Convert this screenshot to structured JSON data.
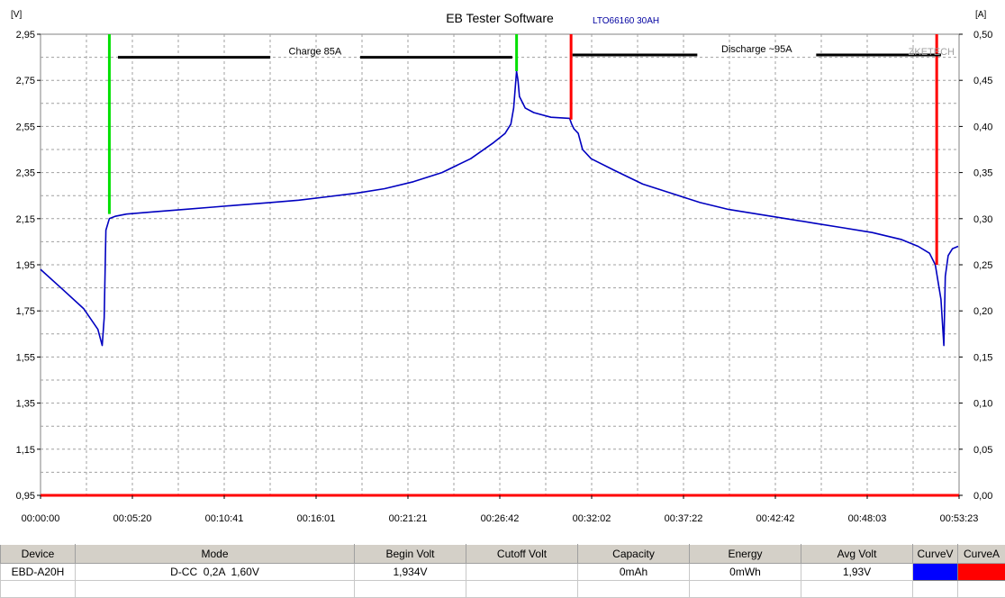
{
  "chart_data": {
    "type": "line",
    "title": "EB Tester Software",
    "subtitle": "LTO66160 30AH",
    "watermark": "ZKETECH",
    "ylabel_left": "[V]",
    "ylabel_right": "[A]",
    "ylim_left": [
      0.95,
      2.95
    ],
    "ylim_right": [
      0.0,
      0.5
    ],
    "yticks_left": [
      "2,95",
      "2,75",
      "2,55",
      "2,35",
      "2,15",
      "1,95",
      "1,75",
      "1,55",
      "1,35",
      "1,15",
      "0,95"
    ],
    "yticks_right": [
      "0,50",
      "0,45",
      "0,40",
      "0,35",
      "0,30",
      "0,25",
      "0,20",
      "0,15",
      "0,10",
      "0,05",
      "0,00"
    ],
    "xlim_seconds": [
      0,
      3203
    ],
    "xticks": [
      "00:00:00",
      "00:05:20",
      "00:10:41",
      "00:16:01",
      "00:21:21",
      "00:26:42",
      "00:32:02",
      "00:37:22",
      "00:42:42",
      "00:48:03",
      "00:53:23"
    ],
    "grid": true,
    "annotations": [
      {
        "text": "Charge 85A",
        "x_start": 270,
        "x_end": 1645,
        "y": 2.85
      },
      {
        "text": "Discharge ~95A",
        "x_start": 1855,
        "x_end": 3140,
        "y": 2.86
      }
    ],
    "markers": [
      {
        "color": "#00e000",
        "x": 240,
        "y_top": 2.95,
        "y_bottom": 2.17
      },
      {
        "color": "#00e000",
        "x": 1660,
        "y_top": 2.95,
        "y_bottom": 2.79
      },
      {
        "color": "#ff0000",
        "x": 1850,
        "y_top": 2.95,
        "y_bottom": 2.58
      },
      {
        "color": "#ff0000",
        "x": 3125,
        "y_top": 2.95,
        "y_bottom": 1.95
      }
    ],
    "series": [
      {
        "axis": "left",
        "color": "#0000c0",
        "points": [
          [
            0,
            1.93
          ],
          [
            80,
            1.84
          ],
          [
            150,
            1.76
          ],
          [
            200,
            1.67
          ],
          [
            215,
            1.6
          ],
          [
            222,
            1.72
          ],
          [
            228,
            2.1
          ],
          [
            240,
            2.15
          ],
          [
            260,
            2.16
          ],
          [
            300,
            2.17
          ],
          [
            400,
            2.18
          ],
          [
            500,
            2.19
          ],
          [
            600,
            2.2
          ],
          [
            700,
            2.21
          ],
          [
            800,
            2.22
          ],
          [
            900,
            2.23
          ],
          [
            1000,
            2.245
          ],
          [
            1100,
            2.26
          ],
          [
            1200,
            2.28
          ],
          [
            1300,
            2.31
          ],
          [
            1400,
            2.35
          ],
          [
            1500,
            2.41
          ],
          [
            1580,
            2.48
          ],
          [
            1620,
            2.52
          ],
          [
            1640,
            2.56
          ],
          [
            1650,
            2.63
          ],
          [
            1660,
            2.79
          ],
          [
            1665,
            2.75
          ],
          [
            1670,
            2.68
          ],
          [
            1690,
            2.63
          ],
          [
            1720,
            2.61
          ],
          [
            1780,
            2.59
          ],
          [
            1845,
            2.585
          ],
          [
            1852,
            2.56
          ],
          [
            1860,
            2.54
          ],
          [
            1875,
            2.52
          ],
          [
            1890,
            2.45
          ],
          [
            1920,
            2.41
          ],
          [
            2000,
            2.36
          ],
          [
            2100,
            2.3
          ],
          [
            2200,
            2.26
          ],
          [
            2300,
            2.22
          ],
          [
            2400,
            2.19
          ],
          [
            2500,
            2.17
          ],
          [
            2600,
            2.15
          ],
          [
            2700,
            2.13
          ],
          [
            2800,
            2.11
          ],
          [
            2900,
            2.09
          ],
          [
            3000,
            2.06
          ],
          [
            3060,
            2.03
          ],
          [
            3100,
            2.0
          ],
          [
            3120,
            1.95
          ],
          [
            3140,
            1.8
          ],
          [
            3150,
            1.6
          ],
          [
            3155,
            1.9
          ],
          [
            3165,
            1.99
          ],
          [
            3180,
            2.02
          ],
          [
            3200,
            2.03
          ]
        ]
      },
      {
        "axis": "right",
        "color": "#ff0000",
        "points": [
          [
            0,
            0.0
          ],
          [
            3203,
            0.0
          ]
        ]
      }
    ]
  },
  "table": {
    "headers": [
      "Device",
      "Mode",
      "Begin Volt",
      "Cutoff Volt",
      "Capacity",
      "Energy",
      "Avg Volt",
      "CurveV",
      "CurveA"
    ],
    "row": [
      "EBD-A20H",
      "D-CC  0,2A  1,60V",
      "1,934V",
      "",
      "0mAh",
      "0mWh",
      "1,93V"
    ],
    "curve_colors": {
      "v": "#0000ff",
      "a": "#ff0000"
    }
  }
}
